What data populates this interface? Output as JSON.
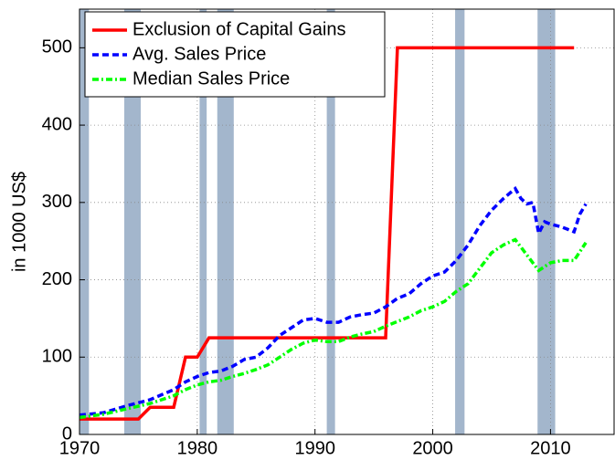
{
  "chart_data": {
    "type": "line",
    "y_label": "in 1000 US$",
    "xlim": [
      1970,
      2015.4
    ],
    "xticks": [
      1970,
      1980,
      1990,
      2000,
      2010
    ],
    "ylim": [
      0,
      550
    ],
    "yticks": [
      0,
      100,
      200,
      300,
      400,
      500
    ],
    "grid": true,
    "legend": "upper left",
    "shaded_color": "#a3b6cc",
    "shaded_regions": [
      [
        1970,
        1970.8
      ],
      [
        1973.8,
        1975.2
      ],
      [
        1980.2,
        1980.8
      ],
      [
        1981.7,
        1983.1
      ],
      [
        1991.0,
        1991.7
      ],
      [
        2001.9,
        2002.7
      ],
      [
        2008.9,
        2010.4
      ]
    ],
    "series": [
      {
        "name": "Exclusion of Capital Gains",
        "color": "#ff0000",
        "dash": "solid",
        "x": [
          1970,
          1975,
          1976,
          1978,
          1979,
          1980,
          1981,
          1996,
          1997,
          2012
        ],
        "values": [
          20,
          20,
          35,
          35,
          100,
          100,
          125,
          125,
          500,
          500
        ]
      },
      {
        "name": "Avg. Sales Price",
        "color": "#0000ff",
        "dash": "dash",
        "x": [
          1970,
          1972,
          1974,
          1976,
          1978,
          1979,
          1980,
          1981,
          1982,
          1983,
          1984,
          1985,
          1986,
          1987,
          1988,
          1989,
          1990,
          1991,
          1992,
          1993,
          1994,
          1995,
          1996,
          1997,
          1998,
          1999,
          2000,
          2001,
          2002,
          2003,
          2004,
          2005,
          2006,
          2007,
          2007.5,
          2008,
          2008.5,
          2009,
          2009.5,
          2010,
          2011,
          2012,
          2012.5,
          2013
        ],
        "values": [
          25,
          28,
          37,
          45,
          58,
          68,
          75,
          80,
          82,
          88,
          97,
          100,
          112,
          128,
          138,
          148,
          150,
          145,
          145,
          152,
          155,
          157,
          165,
          176,
          182,
          195,
          205,
          210,
          225,
          245,
          270,
          290,
          305,
          318,
          305,
          298,
          300,
          260,
          275,
          272,
          268,
          262,
          285,
          298
        ]
      },
      {
        "name": "Median Sales Price",
        "color": "#00ff00",
        "dash": "dashdot",
        "x": [
          1970,
          1972,
          1974,
          1976,
          1978,
          1979,
          1980,
          1981,
          1982,
          1983,
          1984,
          1985,
          1986,
          1987,
          1988,
          1989,
          1990,
          1991,
          1992,
          1993,
          1994,
          1995,
          1996,
          1997,
          1998,
          1999,
          2000,
          2001,
          2002,
          2003,
          2004,
          2005,
          2006,
          2007,
          2008,
          2009,
          2010,
          2011,
          2012,
          2013
        ],
        "values": [
          22,
          26,
          33,
          40,
          50,
          58,
          64,
          68,
          70,
          75,
          79,
          84,
          90,
          100,
          110,
          118,
          122,
          120,
          120,
          126,
          130,
          133,
          140,
          146,
          152,
          160,
          165,
          172,
          185,
          195,
          215,
          235,
          245,
          252,
          232,
          212,
          222,
          225,
          225,
          248
        ]
      }
    ]
  }
}
